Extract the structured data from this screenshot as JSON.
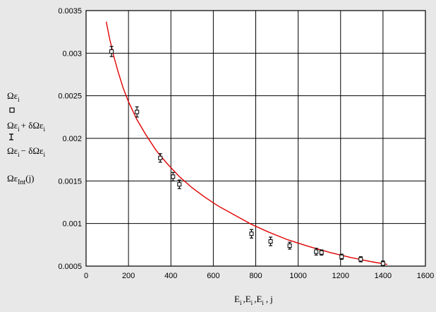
{
  "chart_data": {
    "type": "scatter",
    "xlim": [
      0,
      1600
    ],
    "ylim": [
      0.0005,
      0.0035
    ],
    "x_ticks": [
      0,
      200,
      400,
      600,
      800,
      1000,
      1200,
      1400,
      1600
    ],
    "x_tick_labels": [
      "0",
      "200",
      "400",
      "600",
      "800",
      "1000",
      "1200",
      "1400",
      "1600"
    ],
    "y_ticks": [
      0.0005,
      0.001,
      0.0015,
      0.002,
      0.0025,
      0.003,
      0.0035
    ],
    "y_tick_labels": [
      "0.0005",
      "0.001",
      "0.0015",
      "0.002",
      "0.0025",
      "0.003",
      "0.0035"
    ],
    "grid": true,
    "xlabel": {
      "E": "E",
      "i": "i",
      "sep": ",",
      "j": "j"
    },
    "legend": {
      "placement": "left, outside axes",
      "entries": [
        {
          "main": "Ωε",
          "sub": "i",
          "marker": "square"
        },
        {
          "main": "Ωε",
          "sub": "i",
          "op": "+ δΩε",
          "sub2": "i",
          "marker": "errorbar"
        },
        {
          "main": "Ωε",
          "sub": "i",
          "op": "− δΩε",
          "sub2": "i",
          "marker": "errorbar"
        },
        {
          "main": "Ωε",
          "sub": "Int",
          "arg": "(j)",
          "marker": "line"
        }
      ]
    },
    "series": [
      {
        "kind": "points-with-errorbars",
        "color": "#000000",
        "x": [
          120,
          240,
          350,
          410,
          440,
          780,
          870,
          960,
          1085,
          1110,
          1205,
          1295,
          1400
        ],
        "y": [
          0.00302,
          0.00231,
          0.00177,
          0.00155,
          0.00146,
          0.00088,
          0.00079,
          0.00074,
          0.00067,
          0.00066,
          0.00061,
          0.00058,
          0.00053
        ],
        "err": [
          6e-05,
          6e-05,
          5e-05,
          5e-05,
          5e-05,
          5e-05,
          5e-05,
          4e-05,
          4e-05,
          3e-05,
          3e-05,
          3e-05,
          3e-05
        ]
      },
      {
        "kind": "fit-curve",
        "color": "#e00000",
        "x": [
          95,
          110,
          130,
          150,
          175,
          200,
          240,
          280,
          330,
          380,
          440,
          500,
          560,
          620,
          700,
          780,
          860,
          950,
          1050,
          1150,
          1250,
          1350,
          1420
        ],
        "y": [
          0.00337,
          0.00318,
          0.00297,
          0.00279,
          0.00259,
          0.00243,
          0.00222,
          0.00205,
          0.00186,
          0.00171,
          0.00155,
          0.00142,
          0.00131,
          0.00121,
          0.0011,
          0.00099,
          0.0009,
          0.00081,
          0.00073,
          0.00066,
          0.0006,
          0.00055,
          0.00052
        ]
      }
    ]
  }
}
